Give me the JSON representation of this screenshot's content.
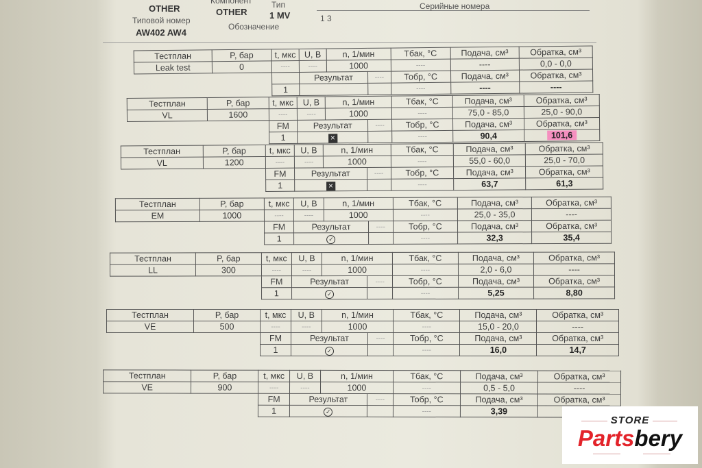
{
  "header": {
    "manufacturer_value": "OTHER",
    "component_label": "Компонент",
    "component_value": "OTHER",
    "type_label": "Тип",
    "type_value": "1 MV",
    "type_number_label": "Типовой номер",
    "type_number_value": "AW402 AW4",
    "designation_label": "Обозначение",
    "serials_label": "Серийные номера",
    "serials_value": "1  3"
  },
  "labels": {
    "plan": "Тестплан",
    "p": "P, бар",
    "t": "t, мкс",
    "u": "U, В",
    "n": "n, 1/мин",
    "ttank": "Тбак, °C",
    "supply": "Подача, см³",
    "ret": "Обратка, см³",
    "fm": "FM",
    "result": "Результат",
    "dash": "----",
    "treturn": "Тобр, °C"
  },
  "blocks": [
    {
      "plan": "Leak test",
      "p": "0",
      "n": "1000",
      "supply_range": "----",
      "return_range": "0,0 - 0,0",
      "fm": "",
      "fm_value": "1",
      "result": "",
      "supply": "----",
      "ret": "----",
      "highlight": false
    },
    {
      "plan": "VL",
      "p": "1600",
      "n": "1000",
      "supply_range": "75,0 - 85,0",
      "return_range": "25,0 - 90,0",
      "fm": "FM",
      "fm_value": "1",
      "result": "fail",
      "supply": "90,4",
      "ret": "101,6",
      "highlight": true
    },
    {
      "plan": "VL",
      "p": "1200",
      "n": "1000",
      "supply_range": "55,0 - 60,0",
      "return_range": "25,0 - 70,0",
      "fm": "FM",
      "fm_value": "1",
      "result": "fail",
      "supply": "63,7",
      "ret": "61,3",
      "highlight": false
    },
    {
      "plan": "EM",
      "p": "1000",
      "n": "1000",
      "supply_range": "25,0 - 35,0",
      "return_range": "----",
      "fm": "FM",
      "fm_value": "1",
      "result": "pass",
      "supply": "32,3",
      "ret": "35,4",
      "highlight": false
    },
    {
      "plan": "LL",
      "p": "300",
      "n": "1000",
      "supply_range": "2,0 - 6,0",
      "return_range": "----",
      "fm": "FM",
      "fm_value": "1",
      "result": "pass",
      "supply": "5,25",
      "ret": "8,80",
      "highlight": false
    },
    {
      "plan": "VE",
      "p": "500",
      "n": "1000",
      "supply_range": "15,0 - 20,0",
      "return_range": "----",
      "fm": "FM",
      "fm_value": "1",
      "result": "pass",
      "supply": "16,0",
      "ret": "14,7",
      "highlight": false
    },
    {
      "plan": "VE",
      "p": "900",
      "n": "1000",
      "supply_range": "0,5 - 5,0",
      "return_range": "----",
      "fm": "FM",
      "fm_value": "1",
      "result": "pass",
      "supply": "3,39",
      "ret": "",
      "highlight": false
    }
  ],
  "highlight_color": "#f58fbf",
  "logo": {
    "store": "STORE",
    "brand_red": "Parts",
    "brand_black": "bery"
  }
}
